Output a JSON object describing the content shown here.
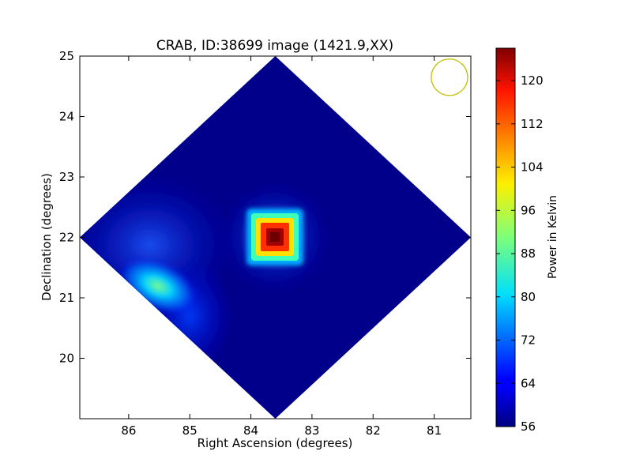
{
  "chart_data": {
    "type": "heatmap",
    "title": "CRAB, ID:38699 image (1421.9,XX)",
    "xlabel": "Right Ascension (degrees)",
    "ylabel": "Declination (degrees)",
    "xlim": [
      86.8,
      80.4
    ],
    "ylim": [
      19.0,
      25.0
    ],
    "x_ticks": [
      86,
      85,
      84,
      83,
      82,
      81
    ],
    "y_ticks": [
      20,
      21,
      22,
      23,
      24,
      25
    ],
    "grid": false,
    "map_region": {
      "shape": "diamond",
      "center": [
        83.6,
        22.0
      ],
      "half_width_ra": 3.2,
      "half_height_dec": 3.0
    },
    "background_level": 56,
    "sources": [
      {
        "name": "CRAB",
        "ra": 83.6,
        "dec": 22.0,
        "peak": 124
      },
      {
        "ra": 85.6,
        "dec": 21.2,
        "peak": 86
      }
    ],
    "beam_marker": {
      "ra": 80.75,
      "dec": 24.65,
      "color": "#bfbf00"
    },
    "colorbar": {
      "label": "Power in Kelvin",
      "range": [
        56,
        126
      ],
      "ticks": [
        56,
        64,
        72,
        80,
        88,
        96,
        104,
        112,
        120
      ],
      "colormap": "jet"
    }
  }
}
